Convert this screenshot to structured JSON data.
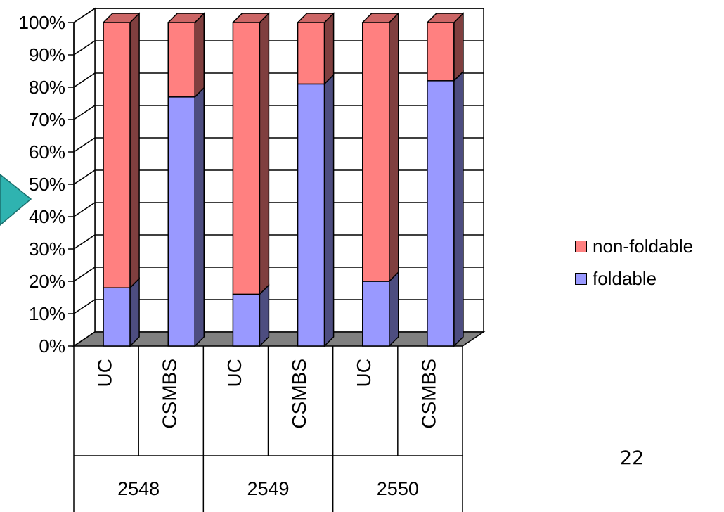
{
  "chart_data": {
    "type": "bar",
    "stacked": true,
    "percent_stacked": true,
    "three_d": true,
    "title": "",
    "xlabel": "",
    "ylabel": "",
    "ylim": [
      0,
      100
    ],
    "y_ticks": [
      "0%",
      "10%",
      "20%",
      "30%",
      "40%",
      "50%",
      "60%",
      "70%",
      "80%",
      "90%",
      "100%"
    ],
    "grid": true,
    "legend_position": "right",
    "groups": [
      {
        "label": "2548",
        "categories": [
          "UC",
          "CSMBS"
        ]
      },
      {
        "label": "2549",
        "categories": [
          "UC",
          "CSMBS"
        ]
      },
      {
        "label": "2550",
        "categories": [
          "UC",
          "CSMBS"
        ]
      }
    ],
    "categories": [
      "UC",
      "CSMBS",
      "UC",
      "CSMBS",
      "UC",
      "CSMBS"
    ],
    "series": [
      {
        "name": "foldable",
        "color": "#9999ff",
        "side_color": "#4d4d80",
        "top_color": "#7a7acc",
        "values": [
          18,
          77,
          16,
          81,
          20,
          82
        ]
      },
      {
        "name": "non-foldable",
        "color": "#ff8080",
        "side_color": "#803f3f",
        "top_color": "#cc6666",
        "values": [
          82,
          23,
          84,
          19,
          80,
          18
        ]
      }
    ],
    "legend": [
      "non-foldable",
      "foldable"
    ]
  },
  "slide_number": "22",
  "decoration": {
    "arrow_color": "#2fb3b0"
  }
}
